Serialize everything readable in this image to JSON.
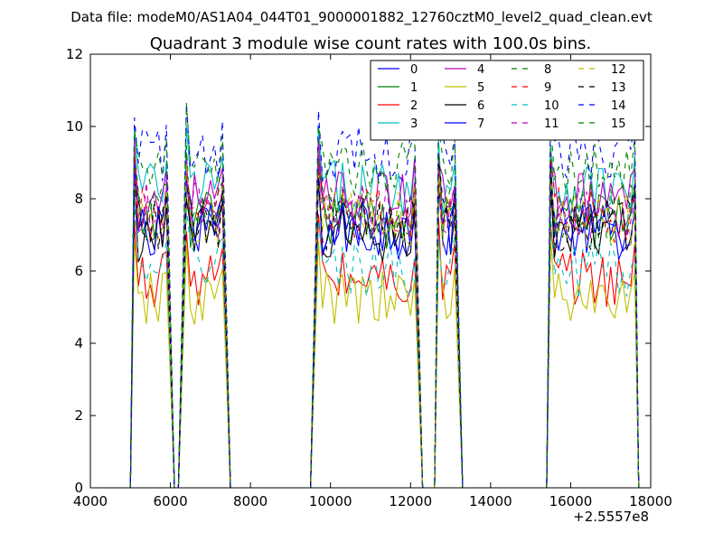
{
  "figure": {
    "suptitle": "Data file: modeM0/AS1A04_044T01_9000001882_12760cztM0_level2_quad_clean.evt",
    "offset_label": "+2.5557e8"
  },
  "chart_data": {
    "type": "line",
    "title": "Quadrant 3 module wise count rates with 100.0s bins.",
    "xlabel": "",
    "ylabel": "",
    "xlim": [
      4000,
      18000
    ],
    "ylim": [
      0,
      12
    ],
    "x_offset": "+2.5557e8",
    "xticks": [
      4000,
      6000,
      8000,
      10000,
      12000,
      14000,
      16000,
      18000
    ],
    "xtick_labels": [
      "4000",
      "6000",
      "8000",
      "10000",
      "12000",
      "14000",
      "16000",
      "18000"
    ],
    "yticks": [
      0,
      2,
      4,
      6,
      8,
      10,
      12
    ],
    "ytick_labels": [
      "0",
      "2",
      "4",
      "6",
      "8",
      "10",
      "12"
    ],
    "grid": false,
    "legend_position": "top-right",
    "legend_columns": 4,
    "active_segments": [
      [
        5100,
        5900
      ],
      [
        6400,
        7300
      ],
      [
        9700,
        12100
      ],
      [
        12700,
        13100
      ],
      [
        15500,
        17600
      ]
    ],
    "x_transitions": {
      "rise": [
        [
          5000,
          5100
        ],
        [
          6200,
          6400
        ],
        [
          9500,
          9700
        ],
        [
          12600,
          12700
        ],
        [
          15400,
          15500
        ]
      ],
      "fall": [
        [
          5900,
          6100
        ],
        [
          7300,
          7500
        ],
        [
          12100,
          12300
        ],
        [
          13100,
          13300
        ],
        [
          17600,
          17700
        ]
      ]
    },
    "series": [
      {
        "name": "0",
        "color": "#0000ff",
        "dash": "solid",
        "level": 7.1
      },
      {
        "name": "1",
        "color": "#008000",
        "dash": "solid",
        "level": 7.4
      },
      {
        "name": "2",
        "color": "#ff0000",
        "dash": "solid",
        "level": 5.8
      },
      {
        "name": "3",
        "color": "#00bfbf",
        "dash": "solid",
        "level": 8.3
      },
      {
        "name": "4",
        "color": "#bf00bf",
        "dash": "solid",
        "level": 8.0
      },
      {
        "name": "5",
        "color": "#bfbf00",
        "dash": "solid",
        "level": 5.2
      },
      {
        "name": "6",
        "color": "#000000",
        "dash": "solid",
        "level": 7.0
      },
      {
        "name": "7",
        "color": "#0000ff",
        "dash": "solid",
        "level": 7.2
      },
      {
        "name": "8",
        "color": "#008000",
        "dash": "dashed",
        "level": 7.6
      },
      {
        "name": "9",
        "color": "#ff0000",
        "dash": "dashed",
        "level": 7.5
      },
      {
        "name": "10",
        "color": "#00bfbf",
        "dash": "dashed",
        "level": 6.0
      },
      {
        "name": "11",
        "color": "#bf00bf",
        "dash": "dashed",
        "level": 7.7
      },
      {
        "name": "12",
        "color": "#bfbf00",
        "dash": "dashed",
        "level": 7.4
      },
      {
        "name": "13",
        "color": "#000000",
        "dash": "dashed",
        "level": 7.3
      },
      {
        "name": "14",
        "color": "#0000ff",
        "dash": "dashed",
        "level": 9.2
      },
      {
        "name": "15",
        "color": "#008000",
        "dash": "dashed",
        "level": 8.8
      }
    ]
  }
}
